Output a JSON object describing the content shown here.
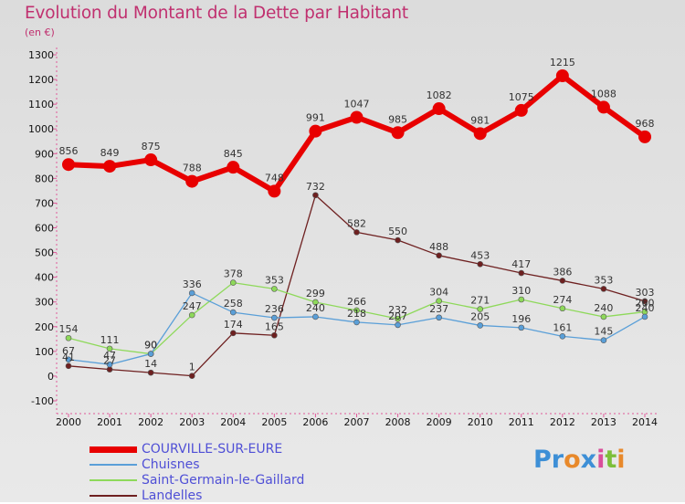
{
  "title": "Evolution du Montant de la Dette par Habitant",
  "unit_label": "(en €)",
  "logo": {
    "parts": [
      {
        "text": "Pr",
        "color": "#3d8fd6"
      },
      {
        "text": "o",
        "color": "#e8892b"
      },
      {
        "text": "x",
        "color": "#3d8fd6"
      },
      {
        "text": "i",
        "color": "#d94f9a"
      },
      {
        "text": "t",
        "color": "#7cbf3a"
      },
      {
        "text": "i",
        "color": "#e8892b"
      }
    ]
  },
  "chart_data": {
    "type": "line",
    "title": "Evolution du Montant de la Dette par Habitant",
    "ylabel": "(en €)",
    "xlabel": "",
    "x": [
      "2000",
      "2001",
      "2002",
      "2003",
      "2004",
      "2005",
      "2006",
      "2007",
      "2008",
      "2009",
      "2010",
      "2011",
      "2012",
      "2013",
      "2014"
    ],
    "yticks": [
      -100,
      0,
      100,
      200,
      300,
      400,
      500,
      600,
      700,
      800,
      900,
      1000,
      1100,
      1200,
      1300
    ],
    "ylim": [
      -100,
      1300
    ],
    "grid": false,
    "legend_position": "bottom-left",
    "series": [
      {
        "name": "COURVILLE-SUR-EURE",
        "color": "#e80000",
        "width": 6,
        "marker": 7,
        "values": [
          856,
          849,
          875,
          788,
          845,
          748,
          991,
          1047,
          985,
          1082,
          981,
          1075,
          1215,
          1088,
          968
        ]
      },
      {
        "name": "Chuisnes",
        "color": "#5a9fd8",
        "width": 1.3,
        "marker": 3,
        "values": [
          67,
          47,
          90,
          336,
          258,
          236,
          240,
          218,
          207,
          237,
          205,
          196,
          161,
          145,
          240
        ]
      },
      {
        "name": "Saint-Germain-le-Gaillard",
        "color": "#8ed95a",
        "width": 1.3,
        "marker": 3,
        "values": [
          154,
          111,
          90,
          247,
          378,
          353,
          299,
          266,
          232,
          304,
          271,
          310,
          274,
          240,
          260
        ]
      },
      {
        "name": "Landelles",
        "color": "#6e2020",
        "width": 1.3,
        "marker": 3,
        "values": [
          41,
          27,
          14,
          1,
          174,
          165,
          732,
          582,
          550,
          488,
          453,
          417,
          386,
          353,
          303
        ]
      }
    ]
  }
}
